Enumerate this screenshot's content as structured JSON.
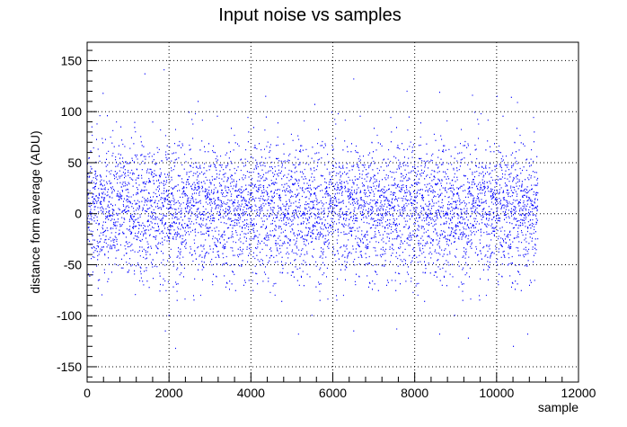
{
  "chart_data": {
    "type": "scatter",
    "title": "Input noise vs samples",
    "xlabel": "sample",
    "ylabel": "distance form average (ADU)",
    "xlim": [
      0,
      12000
    ],
    "ylim": [
      -165,
      168
    ],
    "x_ticks": [
      0,
      2000,
      4000,
      6000,
      8000,
      10000,
      12000
    ],
    "y_ticks": [
      -150,
      -100,
      -50,
      0,
      50,
      100,
      150
    ],
    "grid": true,
    "grid_style": "dotted",
    "marker_color": "#0000ff",
    "series": [
      {
        "n_samples": 11000,
        "sample_step": 2,
        "center": 5,
        "spread_sigma": 33,
        "outliers": [
          {
            "x": 380,
            "y": 118
          },
          {
            "x": 1400,
            "y": 137
          },
          {
            "x": 1870,
            "y": 141
          },
          {
            "x": 2700,
            "y": 110
          },
          {
            "x": 4350,
            "y": 115
          },
          {
            "x": 5550,
            "y": 107
          },
          {
            "x": 6500,
            "y": 132
          },
          {
            "x": 7800,
            "y": 120
          },
          {
            "x": 8600,
            "y": 119
          },
          {
            "x": 9400,
            "y": 116
          },
          {
            "x": 10000,
            "y": 115
          },
          {
            "x": 10350,
            "y": 114
          },
          {
            "x": 10500,
            "y": 109
          },
          {
            "x": 2150,
            "y": -132
          },
          {
            "x": 1900,
            "y": -115
          },
          {
            "x": 5150,
            "y": -118
          },
          {
            "x": 6500,
            "y": -115
          },
          {
            "x": 7550,
            "y": -113
          },
          {
            "x": 8600,
            "y": -118
          },
          {
            "x": 9300,
            "y": -122
          },
          {
            "x": 10400,
            "y": -130
          },
          {
            "x": 10750,
            "y": -118
          }
        ]
      }
    ]
  }
}
